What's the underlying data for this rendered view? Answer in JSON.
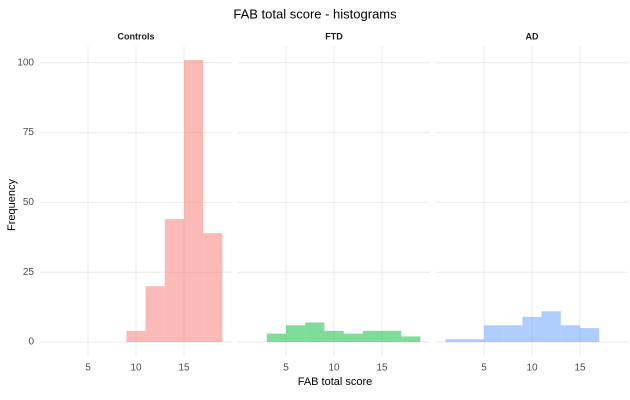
{
  "title": "FAB total score - histograms",
  "x_label": "FAB total score",
  "y_label": "Frequency",
  "chart_data": [
    {
      "type": "histogram",
      "title": "Controls",
      "color": "#F8766D",
      "bins": [
        9,
        11,
        13,
        15,
        17,
        19
      ],
      "values": [
        4,
        20,
        44,
        101,
        39
      ],
      "xlim": [
        0,
        20
      ],
      "xticks": [
        5,
        10,
        15
      ],
      "ylim": [
        -5,
        106
      ],
      "yticks": [
        0,
        25,
        50,
        75,
        100
      ],
      "grid": true
    },
    {
      "type": "histogram",
      "title": "FTD",
      "color": "#00BA38",
      "bins": [
        3,
        5,
        7,
        9,
        11,
        13,
        15,
        17,
        19
      ],
      "values": [
        3,
        6,
        7,
        4,
        3,
        4,
        4,
        2
      ],
      "xlim": [
        0,
        20
      ],
      "xticks": [
        5,
        10,
        15
      ],
      "ylim": [
        -5,
        106
      ],
      "yticks": [
        0,
        25,
        50,
        75,
        100
      ],
      "grid": true
    },
    {
      "type": "histogram",
      "title": "AD",
      "color": "#619CFF",
      "bins": [
        1,
        3,
        5,
        7,
        9,
        11,
        13,
        15,
        17
      ],
      "values": [
        1,
        1,
        6,
        6,
        9,
        11,
        6,
        5
      ],
      "xlim": [
        0,
        20
      ],
      "xticks": [
        5,
        10,
        15
      ],
      "ylim": [
        -5,
        106
      ],
      "yticks": [
        0,
        25,
        50,
        75,
        100
      ],
      "grid": true
    }
  ]
}
